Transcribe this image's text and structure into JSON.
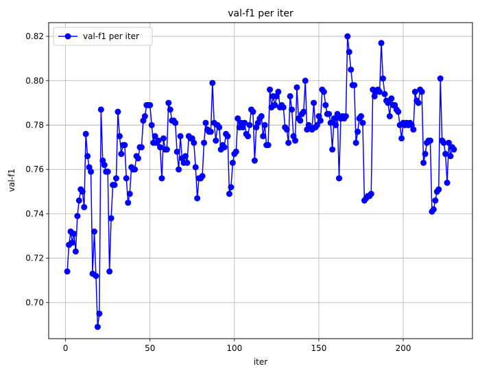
{
  "chart_data": {
    "type": "line",
    "title": "val-f1 per iter",
    "xlabel": "iter",
    "ylabel": "val-f1",
    "xlim": [
      -10,
      241
    ],
    "ylim": [
      0.6837,
      0.8262
    ],
    "xticks": [
      0,
      50,
      100,
      150,
      200
    ],
    "xtick_labels": [
      "0",
      "50",
      "100",
      "150",
      "200"
    ],
    "yticks": [
      0.7,
      0.72,
      0.74,
      0.76,
      0.78,
      0.8,
      0.82
    ],
    "ytick_labels": [
      "0.70",
      "0.72",
      "0.74",
      "0.76",
      "0.78",
      "0.80",
      "0.82"
    ],
    "grid": true,
    "legend_position": "top-left",
    "series": [
      {
        "name": "val-f1 per iter",
        "color": "#0000ff",
        "marker": "circle",
        "x": [
          1,
          2,
          3,
          4,
          5,
          6,
          7,
          8,
          9,
          10,
          11,
          12,
          13,
          14,
          15,
          16,
          17,
          18,
          19,
          20,
          21,
          22,
          23,
          24,
          25,
          26,
          27,
          28,
          29,
          30,
          31,
          32,
          33,
          34,
          35,
          36,
          37,
          38,
          39,
          40,
          41,
          42,
          43,
          44,
          45,
          46,
          47,
          48,
          49,
          50,
          51,
          52,
          53,
          54,
          55,
          56,
          57,
          58,
          59,
          60,
          61,
          62,
          63,
          64,
          65,
          66,
          67,
          68,
          69,
          70,
          71,
          72,
          73,
          74,
          75,
          76,
          77,
          78,
          79,
          80,
          81,
          82,
          83,
          84,
          85,
          86,
          87,
          88,
          89,
          90,
          91,
          92,
          93,
          94,
          95,
          96,
          97,
          98,
          99,
          100,
          101,
          102,
          103,
          104,
          105,
          106,
          107,
          108,
          109,
          110,
          111,
          112,
          113,
          114,
          115,
          116,
          117,
          118,
          119,
          120,
          121,
          122,
          123,
          124,
          125,
          126,
          127,
          128,
          129,
          130,
          131,
          132,
          133,
          134,
          135,
          136,
          137,
          138,
          139,
          140,
          141,
          142,
          143,
          144,
          145,
          146,
          147,
          148,
          149,
          150,
          151,
          152,
          153,
          154,
          155,
          156,
          157,
          158,
          159,
          160,
          161,
          162,
          163,
          164,
          165,
          166,
          167,
          168,
          169,
          170,
          171,
          172,
          173,
          174,
          175,
          176,
          177,
          178,
          179,
          180,
          181,
          182,
          183,
          184,
          185,
          186,
          187,
          188,
          189,
          190,
          191,
          192,
          193,
          194,
          195,
          196,
          197,
          198,
          199,
          200,
          201,
          202,
          203,
          204,
          205,
          206,
          207,
          208,
          209,
          210,
          211,
          212,
          213,
          214,
          215,
          216,
          217,
          218,
          219,
          220,
          221,
          222,
          223,
          224,
          225,
          226,
          227,
          228,
          229,
          230
        ],
        "values": [
          0.714,
          0.726,
          0.732,
          0.727,
          0.731,
          0.723,
          0.739,
          0.746,
          0.751,
          0.75,
          0.743,
          0.776,
          0.766,
          0.761,
          0.759,
          0.713,
          0.732,
          0.712,
          0.689,
          0.695,
          0.787,
          0.764,
          0.762,
          0.759,
          0.759,
          0.714,
          0.738,
          0.753,
          0.753,
          0.756,
          0.786,
          0.775,
          0.767,
          0.771,
          0.771,
          0.756,
          0.745,
          0.749,
          0.761,
          0.76,
          0.76,
          0.766,
          0.765,
          0.77,
          0.77,
          0.782,
          0.784,
          0.789,
          0.789,
          0.789,
          0.78,
          0.772,
          0.775,
          0.772,
          0.773,
          0.77,
          0.756,
          0.774,
          0.769,
          0.769,
          0.79,
          0.787,
          0.782,
          0.782,
          0.781,
          0.768,
          0.76,
          0.775,
          0.765,
          0.763,
          0.766,
          0.763,
          0.775,
          0.774,
          0.774,
          0.772,
          0.761,
          0.747,
          0.756,
          0.756,
          0.757,
          0.772,
          0.781,
          0.778,
          0.777,
          0.777,
          0.799,
          0.781,
          0.773,
          0.78,
          0.779,
          0.769,
          0.771,
          0.77,
          0.776,
          0.775,
          0.749,
          0.752,
          0.763,
          0.767,
          0.768,
          0.783,
          0.779,
          0.781,
          0.779,
          0.781,
          0.776,
          0.775,
          0.78,
          0.787,
          0.786,
          0.764,
          0.779,
          0.781,
          0.783,
          0.784,
          0.775,
          0.78,
          0.771,
          0.771,
          0.796,
          0.788,
          0.793,
          0.789,
          0.793,
          0.795,
          0.788,
          0.789,
          0.788,
          0.779,
          0.778,
          0.772,
          0.793,
          0.787,
          0.775,
          0.773,
          0.797,
          0.783,
          0.782,
          0.785,
          0.786,
          0.8,
          0.778,
          0.78,
          0.779,
          0.778,
          0.79,
          0.779,
          0.78,
          0.784,
          0.782,
          0.796,
          0.795,
          0.789,
          0.785,
          0.785,
          0.781,
          0.769,
          0.783,
          0.78,
          0.785,
          0.756,
          0.783,
          0.784,
          0.783,
          0.784,
          0.82,
          0.813,
          0.805,
          0.798,
          0.798,
          0.772,
          0.777,
          0.783,
          0.784,
          0.781,
          0.746,
          0.747,
          0.748,
          0.748,
          0.749,
          0.796,
          0.793,
          0.795,
          0.796,
          0.795,
          0.817,
          0.801,
          0.794,
          0.791,
          0.79,
          0.784,
          0.792,
          0.789,
          0.789,
          0.787,
          0.786,
          0.78,
          0.774,
          0.781,
          0.78,
          0.781,
          0.78,
          0.781,
          0.78,
          0.778,
          0.795,
          0.791,
          0.79,
          0.796,
          0.795,
          0.763,
          0.767,
          0.772,
          0.773,
          0.773,
          0.741,
          0.742,
          0.746,
          0.75,
          0.751,
          0.801,
          0.773,
          0.772,
          0.767,
          0.754,
          0.772,
          0.766,
          0.77,
          0.769
        ]
      }
    ]
  }
}
